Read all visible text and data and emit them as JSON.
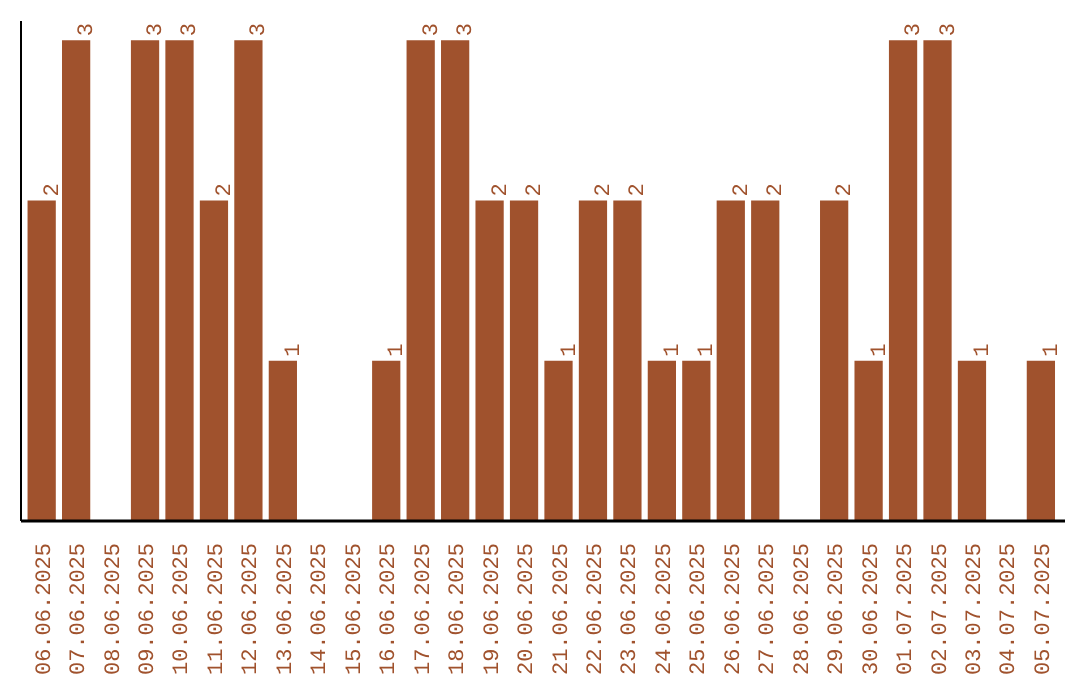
{
  "chart_data": {
    "type": "bar",
    "categories": [
      "06.06.2025",
      "07.06.2025",
      "08.06.2025",
      "09.06.2025",
      "10.06.2025",
      "11.06.2025",
      "12.06.2025",
      "13.06.2025",
      "14.06.2025",
      "15.06.2025",
      "16.06.2025",
      "17.06.2025",
      "18.06.2025",
      "19.06.2025",
      "20.06.2025",
      "21.06.2025",
      "22.06.2025",
      "23.06.2025",
      "24.06.2025",
      "25.06.2025",
      "26.06.2025",
      "27.06.2025",
      "28.06.2025",
      "29.06.2025",
      "30.06.2025",
      "01.07.2025",
      "02.07.2025",
      "03.07.2025",
      "04.07.2025",
      "05.07.2025"
    ],
    "values": [
      2,
      3,
      0,
      3,
      3,
      2,
      3,
      1,
      0,
      0,
      1,
      3,
      3,
      2,
      2,
      1,
      2,
      2,
      1,
      1,
      2,
      2,
      0,
      2,
      1,
      3,
      3,
      1,
      0,
      1
    ],
    "value_labels": [
      "2",
      "3",
      null,
      "3",
      "3",
      "2",
      "3",
      "1",
      null,
      null,
      "1",
      "3",
      "3",
      "2",
      "2",
      "1",
      "2",
      "2",
      "1",
      "1",
      "2",
      "2",
      null,
      "2",
      "1",
      "3",
      "3",
      "1",
      null,
      "1"
    ],
    "color": "#a0522d",
    "grid": false
  }
}
